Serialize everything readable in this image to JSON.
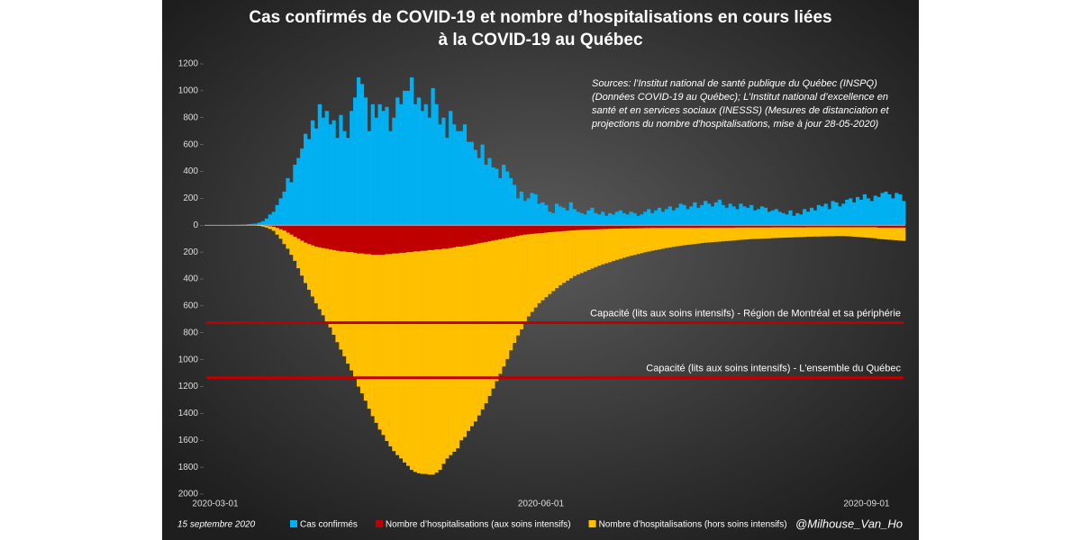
{
  "chart_data": {
    "type": "bar",
    "stacked": true,
    "title_lines": [
      "Cas confirmés de COVID-19 et nombre d’hospitalisations en cours liées",
      "à la COVID-19 au Québec"
    ],
    "annotation_lines": [
      "Sources: l’Institut national de santé publique du Québec (INSPQ)",
      "(Données COVID-19 au Québec); L’Institut national d’excellence en",
      "santé et en services sociaux (INESSS) (Mesures de distanciation et",
      "projections du nombre d'hospitalisations, mise à jour 28-05-2020)"
    ],
    "date_note": "15 septembre 2020",
    "credit": "@Milhouse_Van_Ho",
    "ylim": [
      -2000,
      1200
    ],
    "yticks": [
      {
        "value": -2000,
        "label": "2000"
      },
      {
        "value": -1800,
        "label": "1800"
      },
      {
        "value": -1600,
        "label": "1600"
      },
      {
        "value": -1400,
        "label": "1400"
      },
      {
        "value": -1200,
        "label": "1200"
      },
      {
        "value": -1000,
        "label": "1000"
      },
      {
        "value": -800,
        "label": "800"
      },
      {
        "value": -600,
        "label": "600"
      },
      {
        "value": -400,
        "label": "400"
      },
      {
        "value": -200,
        "label": "200"
      },
      0,
      200,
      400,
      600,
      800,
      1000,
      1200
    ],
    "reference_lines": [
      {
        "value": -725,
        "label": "Capacité (lits aux soins intensifs) - Région de Montréal et sa périphérie",
        "color": "#c00000"
      },
      {
        "value": -1135,
        "label": "Capacité (lits aux soins intensifs) - L'ensemble du Québec",
        "color": "#c00000"
      }
    ],
    "categories": [
      "2020-03-01",
      null,
      null,
      null,
      null,
      null,
      null,
      null,
      null,
      null,
      null,
      null,
      null,
      null,
      null,
      null,
      null,
      null,
      null,
      null,
      null,
      null,
      null,
      null,
      null,
      null,
      null,
      null,
      null,
      null,
      null,
      null,
      null,
      null,
      null,
      null,
      null,
      null,
      null,
      null,
      null,
      null,
      null,
      null,
      null,
      null,
      null,
      null,
      null,
      null,
      null,
      null,
      null,
      null,
      null,
      null,
      null,
      null,
      null,
      null,
      null,
      null,
      null,
      null,
      null,
      null,
      null,
      null,
      null,
      null,
      null,
      null,
      null,
      null,
      null,
      null,
      null,
      null,
      null,
      null,
      null,
      null,
      null,
      null,
      null,
      null,
      null,
      null,
      null,
      null,
      null,
      null,
      "2020-06-01",
      null,
      null,
      null,
      null,
      null,
      null,
      null,
      null,
      null,
      null,
      null,
      null,
      null,
      null,
      null,
      null,
      null,
      null,
      null,
      null,
      null,
      null,
      null,
      null,
      null,
      null,
      null,
      null,
      null,
      null,
      null,
      null,
      null,
      null,
      null,
      null,
      null,
      null,
      null,
      null,
      null,
      null,
      null,
      null,
      null,
      null,
      null,
      null,
      null,
      null,
      null,
      null,
      null,
      null,
      null,
      null,
      null,
      null,
      null,
      null,
      null,
      null,
      null,
      null,
      null,
      null,
      null,
      null,
      null,
      null,
      null,
      null,
      null,
      null,
      null,
      null,
      null,
      null,
      null,
      null,
      null,
      null,
      null,
      null,
      null,
      null,
      null,
      null,
      null,
      null,
      null,
      "2020-09-01",
      null,
      null,
      null,
      null,
      null,
      null,
      null,
      null,
      null,
      null,
      null,
      null,
      null
    ],
    "series": [
      {
        "name": "Cas confirmés",
        "color": "#00b0f0",
        "values": [
          0,
          0,
          0,
          0,
          1,
          1,
          1,
          2,
          1,
          3,
          4,
          5,
          8,
          10,
          12,
          20,
          30,
          50,
          80,
          100,
          150,
          200,
          250,
          350,
          320,
          450,
          500,
          570,
          680,
          640,
          780,
          720,
          900,
          800,
          850,
          750,
          780,
          650,
          820,
          700,
          650,
          850,
          950,
          1100,
          1050,
          950,
          700,
          900,
          800,
          900,
          850,
          880,
          700,
          800,
          950,
          900,
          1000,
          1000,
          1100,
          900,
          950,
          850,
          900,
          800,
          1020,
          900,
          750,
          800,
          650,
          850,
          750,
          700,
          700,
          750,
          620,
          620,
          560,
          500,
          600,
          450,
          500,
          430,
          420,
          350,
          450,
          400,
          350,
          300,
          200,
          250,
          180,
          200,
          240,
          230,
          160,
          170,
          150,
          100,
          90,
          160,
          140,
          130,
          110,
          170,
          120,
          100,
          90,
          80,
          110,
          130,
          90,
          80,
          100,
          70,
          90,
          80,
          100,
          110,
          90,
          80,
          100,
          90,
          70,
          80,
          100,
          120,
          90,
          110,
          130,
          100,
          120,
          140,
          110,
          130,
          160,
          150,
          120,
          140,
          170,
          130,
          150,
          180,
          160,
          140,
          170,
          190,
          150,
          130,
          160,
          140,
          120,
          160,
          140,
          130,
          150,
          110,
          120,
          140,
          130,
          100,
          110,
          120,
          100,
          90,
          80,
          110,
          70,
          90,
          80,
          120,
          100,
          130,
          110,
          150,
          140,
          160,
          120,
          180,
          170,
          140,
          160,
          190,
          200,
          170,
          210,
          190,
          230,
          200,
          180,
          220,
          210,
          240,
          250,
          230,
          200,
          240,
          230,
          180
        ]
      },
      {
        "name": "Nombre d’hospitalisations (aux soins intensifs)",
        "color": "#c00000",
        "values": [
          0,
          0,
          0,
          0,
          0,
          0,
          0,
          0,
          0,
          0,
          0,
          0,
          0,
          0,
          0,
          -1,
          -2,
          -5,
          -8,
          -12,
          -20,
          -30,
          -40,
          -55,
          -70,
          -85,
          -100,
          -115,
          -130,
          -140,
          -150,
          -160,
          -165,
          -170,
          -175,
          -180,
          -185,
          -190,
          -195,
          -195,
          -200,
          -200,
          -205,
          -210,
          -210,
          -215,
          -215,
          -220,
          -220,
          -220,
          -220,
          -215,
          -215,
          -210,
          -210,
          -205,
          -205,
          -200,
          -200,
          -195,
          -195,
          -190,
          -190,
          -185,
          -185,
          -180,
          -180,
          -175,
          -175,
          -170,
          -165,
          -160,
          -160,
          -155,
          -150,
          -145,
          -140,
          -135,
          -130,
          -125,
          -120,
          -115,
          -110,
          -105,
          -100,
          -95,
          -90,
          -85,
          -80,
          -75,
          -70,
          -68,
          -65,
          -62,
          -60,
          -58,
          -55,
          -52,
          -50,
          -48,
          -46,
          -44,
          -42,
          -40,
          -38,
          -36,
          -35,
          -34,
          -33,
          -32,
          -31,
          -30,
          -29,
          -28,
          -27,
          -26,
          -25,
          -25,
          -24,
          -24,
          -23,
          -23,
          -22,
          -22,
          -21,
          -21,
          -20,
          -20,
          -20,
          -20,
          -19,
          -19,
          -19,
          -19,
          -19,
          -19,
          -19,
          -19,
          -19,
          -19,
          -18,
          -18,
          -18,
          -18,
          -18,
          -18,
          -18,
          -18,
          -18,
          -18,
          -17,
          -17,
          -17,
          -17,
          -17,
          -17,
          -17,
          -17,
          -17,
          -17,
          -16,
          -16,
          -16,
          -16,
          -16,
          -16,
          -16,
          -16,
          -16,
          -16,
          -15,
          -15,
          -15,
          -15,
          -15,
          -15,
          -15,
          -15,
          -15,
          -15,
          -15,
          -15,
          -15,
          -15,
          -15,
          -15,
          -15,
          -15,
          -15,
          -15,
          -18,
          -18,
          -18,
          -18,
          -18,
          -18,
          -18,
          -18
        ]
      },
      {
        "name": "Nombre d’hospitalisations (hors soins intensifs)",
        "color": "#ffc000",
        "values": [
          0,
          0,
          0,
          0,
          0,
          0,
          0,
          0,
          0,
          0,
          0,
          0,
          0,
          0,
          -2,
          -4,
          -8,
          -12,
          -20,
          -30,
          -50,
          -70,
          -100,
          -120,
          -150,
          -180,
          -220,
          -260,
          -300,
          -340,
          -380,
          -420,
          -460,
          -500,
          -540,
          -580,
          -630,
          -680,
          -730,
          -780,
          -830,
          -880,
          -930,
          -990,
          -1040,
          -1090,
          -1150,
          -1200,
          -1250,
          -1300,
          -1340,
          -1390,
          -1430,
          -1470,
          -1500,
          -1530,
          -1560,
          -1590,
          -1620,
          -1640,
          -1650,
          -1660,
          -1660,
          -1670,
          -1670,
          -1660,
          -1640,
          -1600,
          -1560,
          -1540,
          -1520,
          -1500,
          -1440,
          -1420,
          -1380,
          -1350,
          -1320,
          -1280,
          -1240,
          -1200,
          -1150,
          -1100,
          -1050,
          -1000,
          -950,
          -900,
          -840,
          -790,
          -740,
          -700,
          -650,
          -610,
          -580,
          -550,
          -520,
          -500,
          -480,
          -460,
          -440,
          -420,
          -400,
          -385,
          -370,
          -355,
          -340,
          -330,
          -320,
          -310,
          -300,
          -290,
          -280,
          -270,
          -262,
          -255,
          -248,
          -240,
          -232,
          -225,
          -218,
          -210,
          -204,
          -198,
          -192,
          -186,
          -180,
          -175,
          -170,
          -165,
          -160,
          -155,
          -150,
          -146,
          -142,
          -138,
          -134,
          -130,
          -127,
          -124,
          -121,
          -118,
          -115,
          -112,
          -110,
          -108,
          -106,
          -104,
          -102,
          -100,
          -98,
          -96,
          -94,
          -92,
          -90,
          -88,
          -86,
          -85,
          -84,
          -83,
          -82,
          -81,
          -80,
          -79,
          -78,
          -77,
          -76,
          -75,
          -74,
          -73,
          -72,
          -71,
          -70,
          -70,
          -69,
          -69,
          -68,
          -68,
          -67,
          -67,
          -66,
          -66,
          -66,
          -67,
          -68,
          -70,
          -72,
          -74,
          -76,
          -78,
          -80,
          -82,
          -84,
          -86,
          -88,
          -90,
          -92,
          -94,
          -96,
          -98
        ]
      }
    ]
  }
}
